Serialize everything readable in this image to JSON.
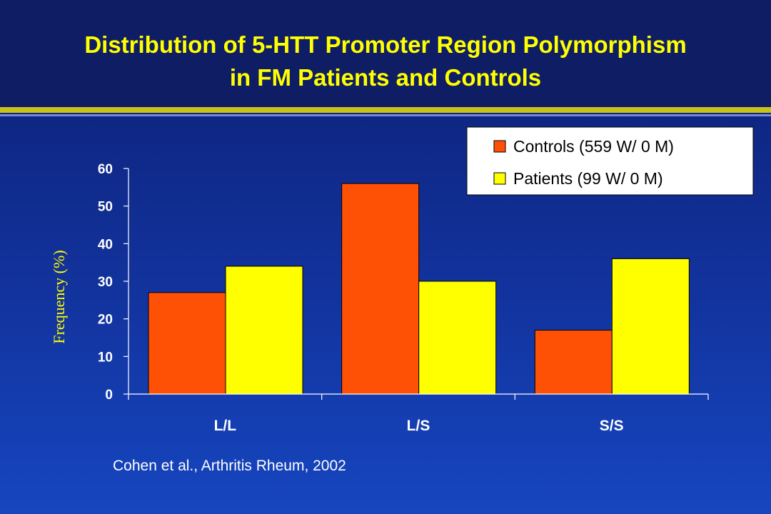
{
  "header": {
    "title_line1": "Distribution  of 5-HTT Promoter Region Polymorphism",
    "title_line2": "in FM Patients and Controls"
  },
  "citation": "Cohen et al., Arthritis Rheum, 2002",
  "colors": {
    "controls": "#ff5106",
    "patients": "#ffff00",
    "axis": "#ffffff",
    "title": "#ffff00",
    "accent_rule": "#c9c21a"
  },
  "chart_data": {
    "type": "bar",
    "categories": [
      "L/L",
      "L/S",
      "S/S"
    ],
    "series": [
      {
        "name": "Controls (559 W/ 0 M)",
        "values": [
          27,
          56,
          17
        ]
      },
      {
        "name": "Patients (99 W/ 0 M)",
        "values": [
          34,
          30,
          36
        ]
      }
    ],
    "ylabel": "Frequency (%)",
    "xlabel": "",
    "ylim": [
      0,
      60
    ],
    "yticks": [
      0,
      10,
      20,
      30,
      40,
      50,
      60
    ],
    "grid": false,
    "legend_position": "top-right"
  }
}
